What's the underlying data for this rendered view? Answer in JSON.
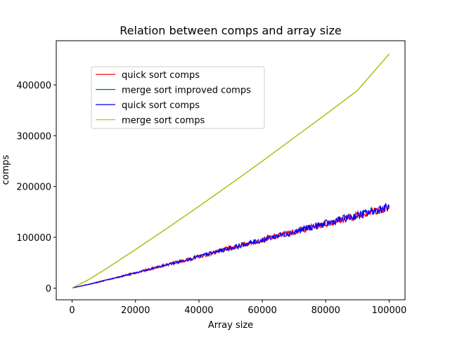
{
  "chart_data": {
    "type": "line",
    "title": "Relation between comps and array size",
    "xlabel": "Array size",
    "ylabel": "comps",
    "xlim": [
      -5000,
      105000
    ],
    "ylim": [
      -23000,
      487000
    ],
    "xticks": [
      0,
      20000,
      40000,
      60000,
      80000,
      100000
    ],
    "yticks": [
      0,
      100000,
      200000,
      300000,
      400000
    ],
    "xtick_labels": [
      "0",
      "20000",
      "40000",
      "60000",
      "80000",
      "100000"
    ],
    "ytick_labels": [
      "0",
      "100000",
      "200000",
      "300000",
      "400000"
    ],
    "grid": false,
    "legend_position": "upper-left",
    "series": [
      {
        "name": "quick sort comps",
        "color": "#ff0000",
        "x": [
          100,
          5000,
          10000,
          20000,
          30000,
          40000,
          50000,
          60000,
          70000,
          80000,
          90000,
          100000
        ],
        "values": [
          400,
          7000,
          14500,
          30000,
          46000,
          62000,
          79000,
          95000,
          111000,
          127000,
          143000,
          160000
        ]
      },
      {
        "name": "merge sort improved comps",
        "color": "#008000",
        "x": [
          100,
          5000,
          10000,
          20000,
          30000,
          40000,
          50000,
          60000,
          70000,
          80000,
          90000,
          100000
        ],
        "values": [
          500,
          16000,
          35000,
          76000,
          118000,
          161000,
          205000,
          250000,
          296000,
          342000,
          389000,
          461000
        ]
      },
      {
        "name": "quick sort comps",
        "color": "#0000ff",
        "x": [
          100,
          5000,
          10000,
          20000,
          30000,
          40000,
          50000,
          60000,
          70000,
          80000,
          90000,
          100000
        ],
        "values": [
          400,
          7000,
          14500,
          30000,
          46000,
          62000,
          79000,
          95000,
          111000,
          127000,
          143000,
          160000
        ]
      },
      {
        "name": "merge sort comps",
        "color": "#bfbf00",
        "x": [
          100,
          5000,
          10000,
          20000,
          30000,
          40000,
          50000,
          60000,
          70000,
          80000,
          90000,
          100000
        ],
        "values": [
          500,
          16000,
          35000,
          76000,
          118000,
          161000,
          205000,
          250000,
          296000,
          342000,
          389000,
          461000
        ]
      }
    ]
  }
}
